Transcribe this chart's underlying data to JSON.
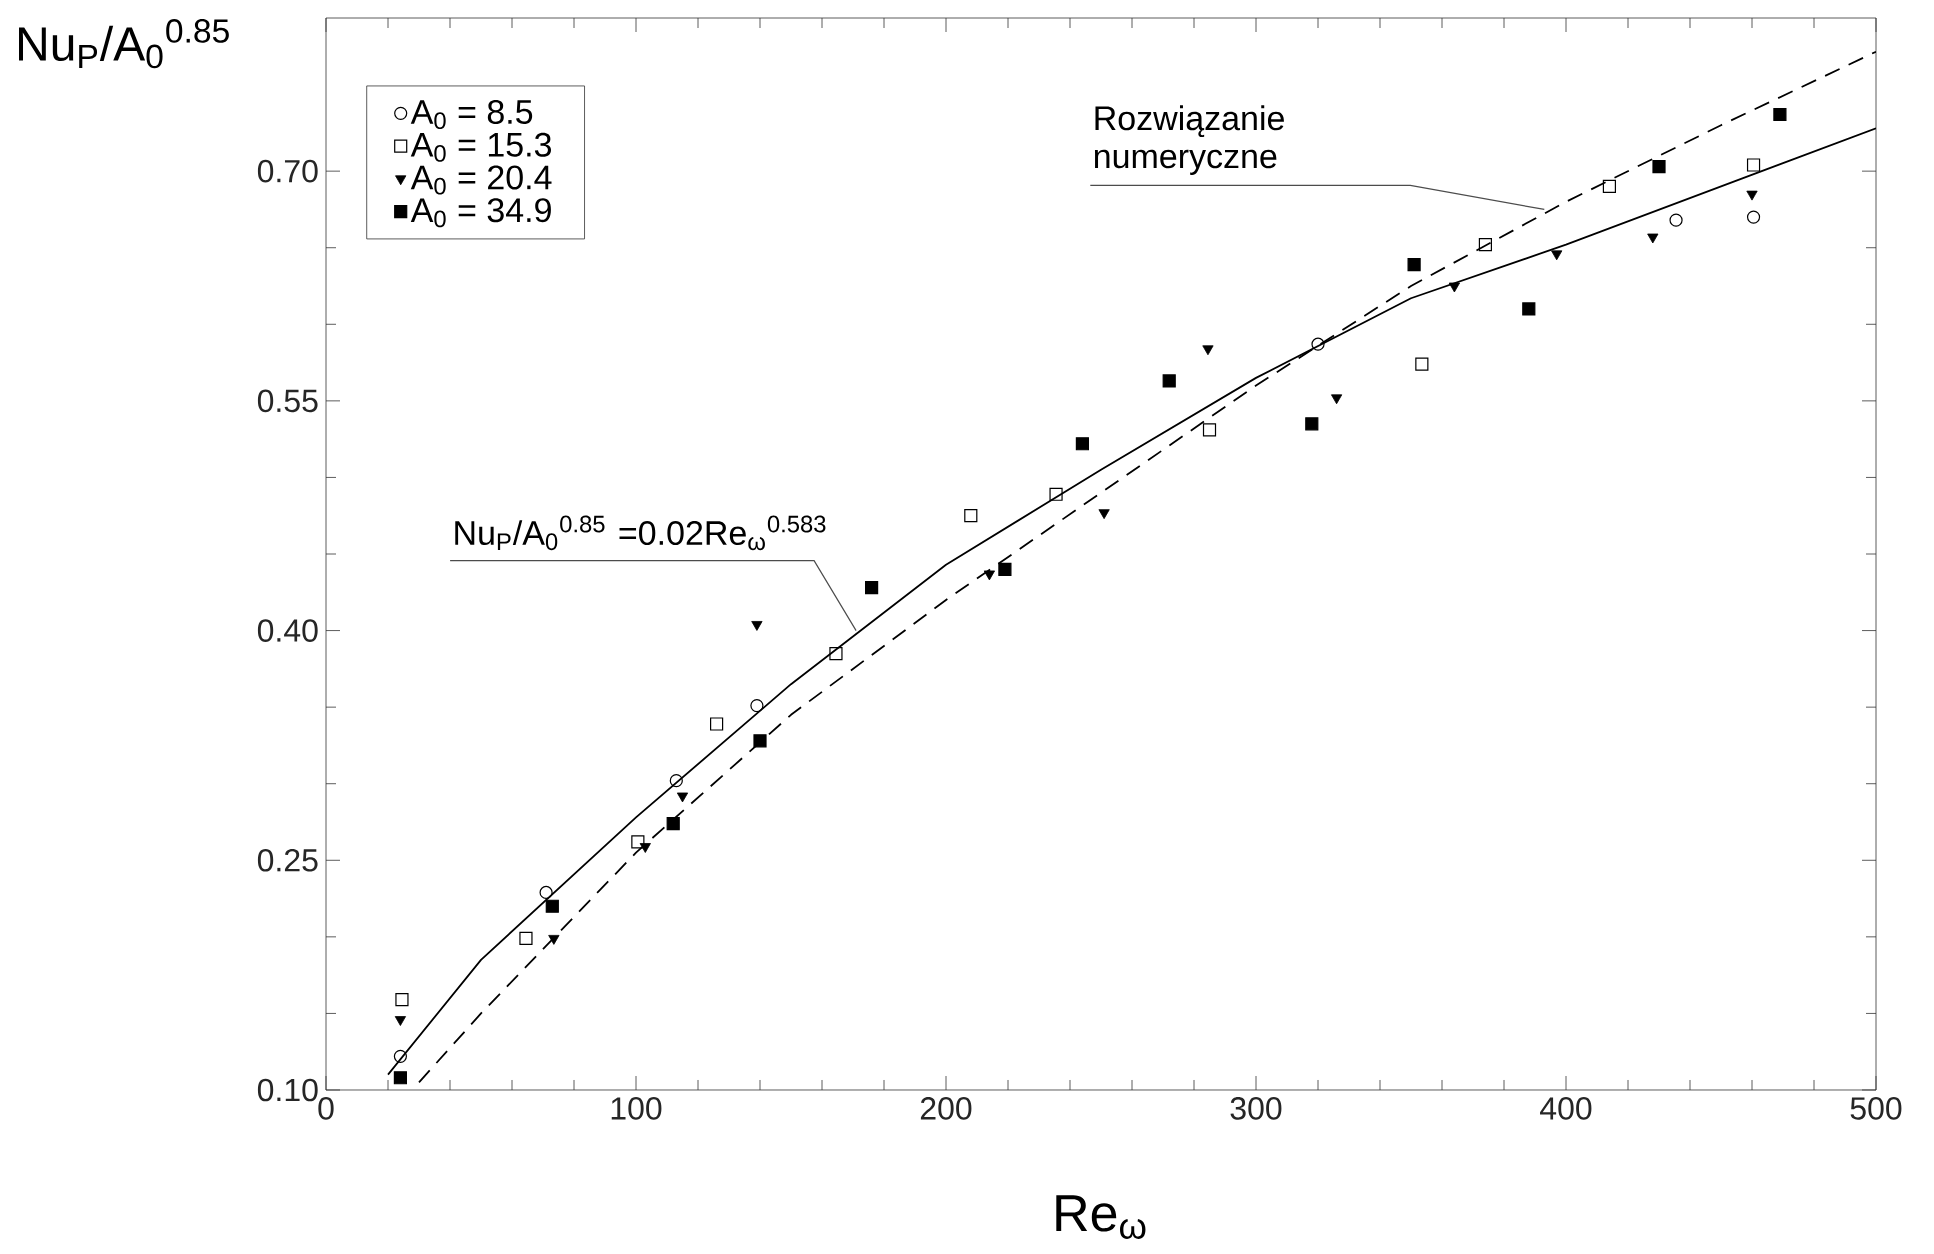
{
  "chart_data": {
    "type": "scatter",
    "xlabel": "Re$_{ω}$",
    "ylabel": "Nu$_{P}$/A$_{0}$$^{0.85}$",
    "xlim": [
      0,
      500
    ],
    "ylim": [
      0.1,
      0.8
    ],
    "xticks": [
      0,
      100,
      200,
      300,
      400,
      500
    ],
    "yticks": [
      {
        "value": 0.1,
        "label": "0.10"
      },
      {
        "value": 0.25,
        "label": "0.25"
      },
      {
        "value": 0.4,
        "label": "0.40"
      },
      {
        "value": 0.55,
        "label": "0.55"
      },
      {
        "value": 0.7,
        "label": "0.70"
      }
    ],
    "legend": "top left",
    "grid": false,
    "series": [
      {
        "name": "A$_{0}$ = 8.5",
        "color": "#000000",
        "marker": "circle",
        "x": [
          24,
          71,
          113,
          139,
          320,
          435.5,
          460.5
        ],
        "values": [
          0.122,
          0.229,
          0.302,
          0.351,
          0.587,
          0.668,
          0.67
        ]
      },
      {
        "name": "A$_{0}$ = 15.3",
        "color": "#000000",
        "marker": "square",
        "x": [
          24.5,
          64.5,
          100.6,
          126,
          164.5,
          208,
          235.5,
          285,
          353.5,
          374,
          414,
          460.5
        ],
        "values": [
          0.159,
          0.199,
          0.262,
          0.339,
          0.385,
          0.475,
          0.489,
          0.531,
          0.574,
          0.652,
          0.69,
          0.704
        ]
      },
      {
        "name": "A$_{0}$ = 20.4",
        "color": "#000000",
        "marker": "triangle",
        "x": [
          24,
          73.5,
          103,
          115,
          139,
          214,
          251,
          284.5,
          326,
          364,
          397,
          428,
          460
        ],
        "values": [
          0.146,
          0.199,
          0.259,
          0.292,
          0.404,
          0.437,
          0.477,
          0.584,
          0.552,
          0.625,
          0.646,
          0.657,
          0.685
        ]
      },
      {
        "name": "A$_{0}$ = 34.9",
        "color": "#000000",
        "marker": "square",
        "x": [
          24,
          73,
          112,
          140,
          176,
          219,
          244,
          272,
          318,
          351,
          388,
          430,
          469
        ],
        "values": [
          0.108,
          0.22,
          0.274,
          0.328,
          0.428,
          0.44,
          0.522,
          0.563,
          0.535,
          0.639,
          0.61,
          0.703,
          0.737
        ]
      },
      {
        "type": "line",
        "color": "#000000",
        "marker": "none",
        "line_style": "solid",
        "x": [
          20,
          50,
          100,
          150,
          200,
          250,
          300,
          350,
          400,
          450,
          500
        ],
        "values": [
          0.11,
          0.185,
          0.278,
          0.365,
          0.443,
          0.505,
          0.565,
          0.617,
          0.652,
          0.69,
          0.728
        ]
      },
      {
        "type": "line",
        "color": "#000000",
        "marker": "none",
        "line_style": "dashed",
        "x": [
          30,
          50,
          100,
          150,
          200,
          250,
          300,
          350,
          400,
          450,
          500
        ],
        "values": [
          0.105,
          0.15,
          0.255,
          0.345,
          0.42,
          0.49,
          0.56,
          0.625,
          0.68,
          0.73,
          0.778
        ]
      }
    ],
    "annotations": [
      {
        "text": "Rozwiązanie numeryczne",
        "x": 393,
        "y": 0.675
      },
      {
        "text": "Nu$_{P}$/A$_{0}$$^{0.85}$ =0.02Re$_{ω}$$^{0.583}$",
        "x": 171,
        "y": 0.4
      }
    ]
  }
}
